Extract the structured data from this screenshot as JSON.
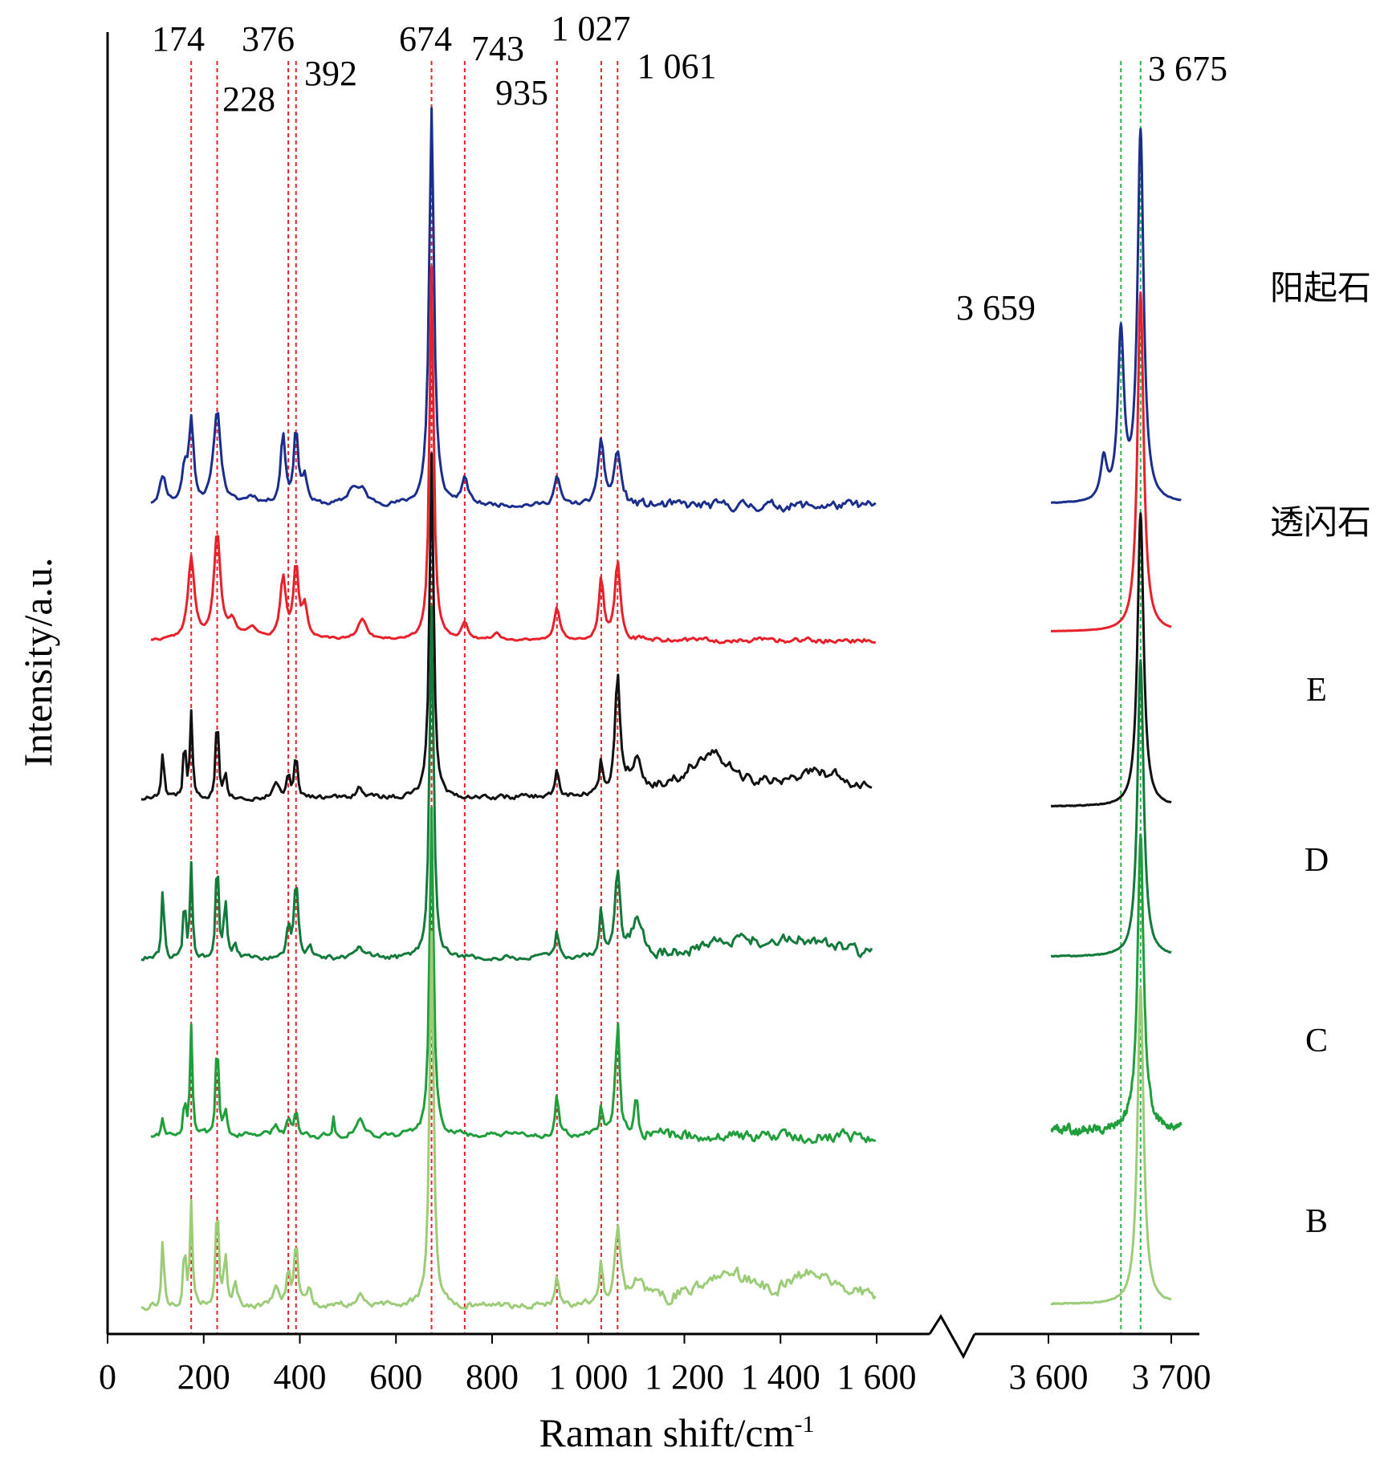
{
  "chart_data": {
    "type": "line",
    "title": "",
    "xlabel": "Raman shift/cm-1",
    "ylabel": "Intensity/a.u.",
    "x_ticks_left": [
      "0",
      "200",
      "400",
      "600",
      "800",
      "1 000",
      "1 200",
      "1 400",
      "1 600"
    ],
    "x_ticks_right": [
      "3 600",
      "3 700"
    ],
    "x_tick_values_left": [
      0,
      200,
      400,
      600,
      800,
      1000,
      1200,
      1400,
      1600
    ],
    "x_tick_values_right": [
      3600,
      3700
    ],
    "x_axis_break": true,
    "xlim_left": [
      0,
      1600
    ],
    "xlim_right": [
      3600,
      3710
    ],
    "peak_labels": [
      {
        "text": "174",
        "x": 174,
        "color": "#e8202a"
      },
      {
        "text": "228",
        "x": 228,
        "color": "#e8202a"
      },
      {
        "text": "376",
        "x": 376,
        "color": "#e8202a"
      },
      {
        "text": "392",
        "x": 392,
        "color": "#e8202a"
      },
      {
        "text": "674",
        "x": 674,
        "color": "#e8202a"
      },
      {
        "text": "743",
        "x": 743,
        "color": "#e8202a"
      },
      {
        "text": "935",
        "x": 935,
        "color": "#e8202a"
      },
      {
        "text": "1 027",
        "x": 1027,
        "color": "#e8202a"
      },
      {
        "text": "1 061",
        "x": 1061,
        "color": "#e8202a"
      },
      {
        "text": "3 659",
        "x": 3659,
        "color": "#2fb34a"
      },
      {
        "text": "3 675",
        "x": 3675,
        "color": "#2fb34a"
      }
    ],
    "series": [
      {
        "name": "阳起石",
        "color": "#1c2e8c",
        "noise": 0.02,
        "seed": 11,
        "left_range": [
          90,
          1600
        ],
        "right_range": [
          3602,
          3708
        ],
        "stroke": 3,
        "peaks": [
          [
            115,
            0.07,
            8
          ],
          [
            160,
            0.08,
            6
          ],
          [
            174,
            0.2,
            6
          ],
          [
            228,
            0.23,
            9
          ],
          [
            300,
            0.02,
            15
          ],
          [
            365,
            0.17,
            6
          ],
          [
            392,
            0.19,
            5
          ],
          [
            410,
            0.07,
            6
          ],
          [
            510,
            0.04,
            12
          ],
          [
            530,
            0.03,
            12
          ],
          [
            674,
            0.97,
            6
          ],
          [
            743,
            0.06,
            8
          ],
          [
            935,
            0.07,
            7
          ],
          [
            1027,
            0.16,
            7
          ],
          [
            1061,
            0.13,
            8
          ]
        ],
        "peaks_right": [
          [
            3645,
            0.11,
            3
          ],
          [
            3659,
            0.45,
            3
          ],
          [
            3675,
            1.0,
            3
          ]
        ]
      },
      {
        "name": "透闪石",
        "color": "#e8202a",
        "noise": 0.01,
        "seed": 22,
        "left_range": [
          90,
          1600
        ],
        "right_range": [
          3602,
          3700
        ],
        "stroke": 3,
        "peaks": [
          [
            174,
            0.2,
            8
          ],
          [
            228,
            0.26,
            8
          ],
          [
            260,
            0.04,
            10
          ],
          [
            300,
            0.03,
            12
          ],
          [
            365,
            0.15,
            7
          ],
          [
            392,
            0.18,
            6
          ],
          [
            410,
            0.08,
            7
          ],
          [
            530,
            0.05,
            12
          ],
          [
            674,
            0.92,
            5
          ],
          [
            743,
            0.04,
            8
          ],
          [
            810,
            0.02,
            8
          ],
          [
            935,
            0.08,
            7
          ],
          [
            1027,
            0.15,
            6
          ],
          [
            1061,
            0.19,
            7
          ]
        ],
        "peaks_right": [
          [
            3675,
            0.96,
            3
          ]
        ]
      },
      {
        "name": "E",
        "color": "#111111",
        "noise": 0.028,
        "seed": 33,
        "left_range": [
          70,
          1590
        ],
        "right_range": [
          3602,
          3700
        ],
        "stroke": 3,
        "peaks": [
          [
            115,
            0.14,
            3
          ],
          [
            160,
            0.2,
            2.5
          ],
          [
            174,
            0.24,
            3
          ],
          [
            228,
            0.27,
            3
          ],
          [
            245,
            0.08,
            4
          ],
          [
            350,
            0.05,
            6
          ],
          [
            376,
            0.07,
            4
          ],
          [
            392,
            0.14,
            4
          ],
          [
            525,
            0.03,
            10
          ],
          [
            674,
            1.0,
            5
          ],
          [
            935,
            0.08,
            4
          ],
          [
            1027,
            0.09,
            4
          ],
          [
            1061,
            0.35,
            6
          ],
          [
            1100,
            0.1,
            15
          ],
          [
            1250,
            0.12,
            60
          ],
          [
            1480,
            0.07,
            80
          ]
        ],
        "peaks_right": [
          [
            3675,
            0.87,
            3
          ]
        ]
      },
      {
        "name": "D",
        "color": "#137a3c",
        "noise": 0.03,
        "seed": 44,
        "left_range": [
          70,
          1590
        ],
        "right_range": [
          3602,
          3700
        ],
        "stroke": 3,
        "peaks": [
          [
            115,
            0.21,
            3
          ],
          [
            160,
            0.2,
            2.5
          ],
          [
            174,
            0.28,
            3
          ],
          [
            228,
            0.34,
            3
          ],
          [
            245,
            0.17,
            4
          ],
          [
            265,
            0.05,
            4
          ],
          [
            376,
            0.09,
            4
          ],
          [
            392,
            0.23,
            5
          ],
          [
            420,
            0.04,
            5
          ],
          [
            525,
            0.03,
            10
          ],
          [
            674,
            1.05,
            5
          ],
          [
            935,
            0.08,
            4
          ],
          [
            1027,
            0.14,
            4
          ],
          [
            1061,
            0.25,
            6
          ],
          [
            1100,
            0.1,
            15
          ],
          [
            1300,
            0.05,
            80
          ],
          [
            1450,
            0.05,
            80
          ]
        ],
        "peaks_right": [
          [
            3675,
            0.88,
            3
          ]
        ]
      },
      {
        "name": "C",
        "color": "#1f9e3b",
        "noise": 0.03,
        "seed": 55,
        "left_range": [
          90,
          1600
        ],
        "right_range": [
          3602,
          3708
        ],
        "stroke": 3,
        "peaks": [
          [
            115,
            0.06,
            3
          ],
          [
            160,
            0.12,
            2.5
          ],
          [
            174,
            0.31,
            3
          ],
          [
            228,
            0.3,
            3
          ],
          [
            245,
            0.07,
            4
          ],
          [
            350,
            0.03,
            6
          ],
          [
            376,
            0.05,
            4
          ],
          [
            392,
            0.08,
            4
          ],
          [
            470,
            0.06,
            2
          ],
          [
            525,
            0.05,
            8
          ],
          [
            674,
            0.93,
            5
          ],
          [
            935,
            0.11,
            4
          ],
          [
            1027,
            0.08,
            4
          ],
          [
            1061,
            0.32,
            5
          ],
          [
            1100,
            0.1,
            4
          ]
        ],
        "peaks_right": [
          [
            3675,
            0.88,
            3
          ]
        ]
      },
      {
        "name": "B",
        "color": "#9ccc78",
        "noise": 0.035,
        "seed": 66,
        "left_range": [
          70,
          1600
        ],
        "right_range": [
          3602,
          3700
        ],
        "stroke": 3,
        "peaks": [
          [
            115,
            0.2,
            3
          ],
          [
            160,
            0.2,
            2.5
          ],
          [
            174,
            0.3,
            3
          ],
          [
            228,
            0.35,
            3
          ],
          [
            245,
            0.14,
            4
          ],
          [
            265,
            0.06,
            4
          ],
          [
            350,
            0.06,
            6
          ],
          [
            376,
            0.1,
            4
          ],
          [
            392,
            0.2,
            4
          ],
          [
            420,
            0.06,
            5
          ],
          [
            525,
            0.03,
            10
          ],
          [
            674,
            1.1,
            5
          ],
          [
            935,
            0.09,
            4
          ],
          [
            1027,
            0.13,
            4
          ],
          [
            1061,
            0.23,
            6
          ],
          [
            1100,
            0.08,
            15
          ],
          [
            1280,
            0.1,
            60
          ],
          [
            1480,
            0.09,
            70
          ]
        ],
        "peaks_right": [
          [
            3675,
            0.95,
            3
          ]
        ]
      }
    ]
  }
}
